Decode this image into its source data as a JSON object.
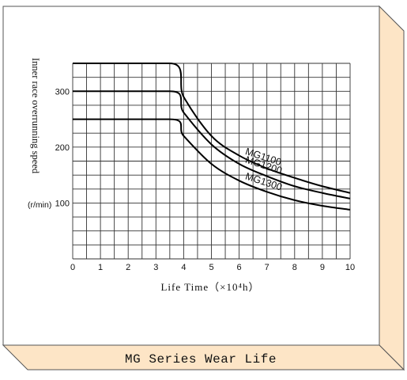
{
  "caption": "MG Series Wear Life",
  "chart_data": {
    "type": "line",
    "xlabel": "Life Time（×10⁴h）",
    "ylabel": "Inner race overrunning speed",
    "yunit": "(r/min)",
    "xlim": [
      0,
      10
    ],
    "ylim": [
      0,
      350
    ],
    "xticks": [
      0,
      1,
      2,
      3,
      4,
      5,
      6,
      7,
      8,
      9,
      10
    ],
    "yticks": [
      100,
      200,
      300
    ],
    "grid": true,
    "series": [
      {
        "name": "MG1100",
        "x": [
          0,
          3.5,
          4,
          5,
          6,
          7,
          8,
          9,
          10
        ],
        "y": [
          350,
          350,
          290,
          220,
          185,
          162,
          145,
          130,
          118
        ]
      },
      {
        "name": "MG1200",
        "x": [
          0,
          3.5,
          4,
          5,
          6,
          7,
          8,
          9,
          10
        ],
        "y": [
          300,
          300,
          262,
          205,
          170,
          148,
          130,
          118,
          108
        ]
      },
      {
        "name": "MG1300",
        "x": [
          0,
          3.5,
          4,
          5,
          6,
          7,
          8,
          9,
          10
        ],
        "y": [
          250,
          250,
          220,
          170,
          140,
          120,
          105,
          95,
          88
        ]
      }
    ]
  }
}
